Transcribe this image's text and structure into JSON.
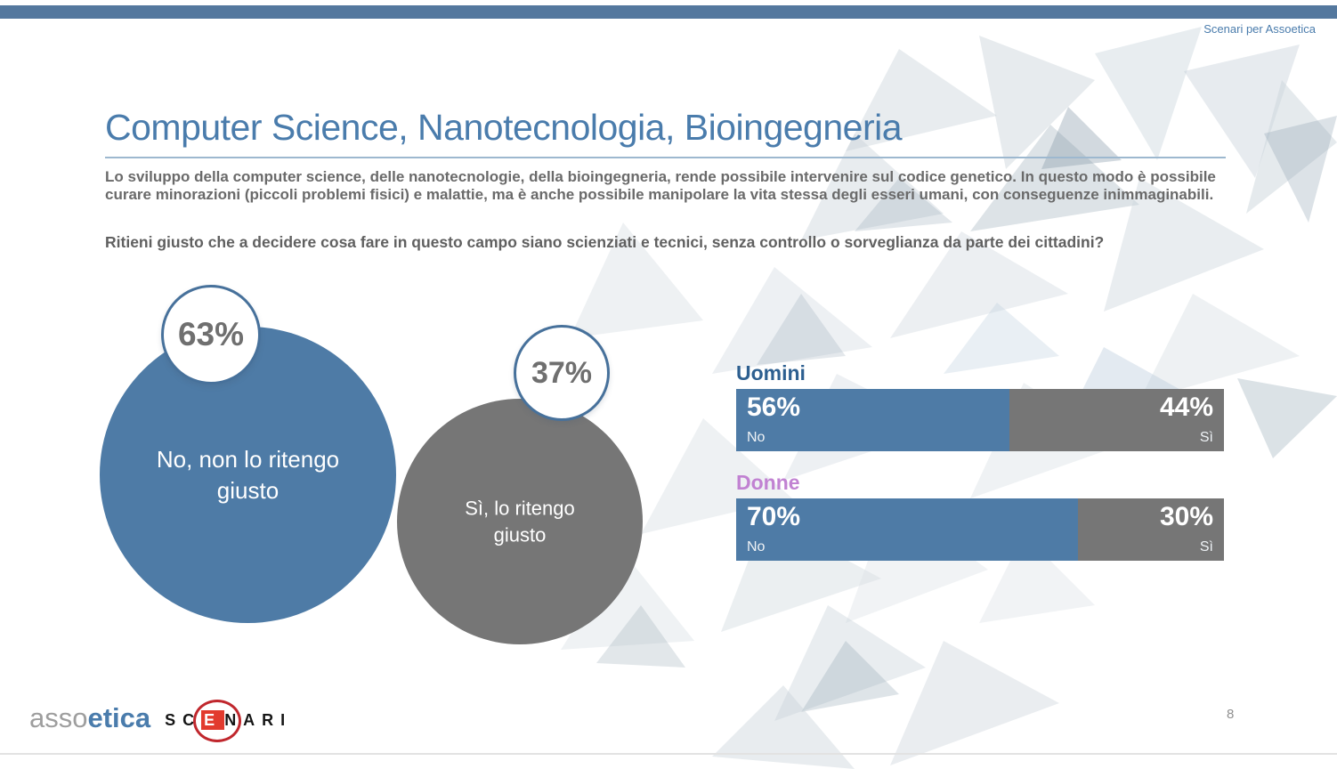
{
  "page": {
    "top_note": "Scenari per Assoetica",
    "page_number": "8"
  },
  "slide": {
    "title": "Computer Science, Nanotecnologia, Bioingegneria",
    "intro": "Lo sviluppo della computer science, delle nanotecnologie, della bioingegneria, rende possibile intervenire sul codice genetico. In questo modo è possibile curare minorazioni (piccoli problemi fisici) e malattie, ma è anche possibile manipolare la vita stessa degli esseri umani, con conseguenze inimmaginabili.",
    "question": "Ritieni giusto che a decidere cosa fare in questo campo siano scienziati e tecnici, senza controllo o sorveglianza da parte dei cittadini?"
  },
  "bubbles": [
    {
      "percent": "63%",
      "label": "No, non lo ritengo giusto"
    },
    {
      "percent": "37%",
      "label": "Sì, lo ritengo giusto"
    }
  ],
  "bars": [
    {
      "group": "Uomini",
      "segments": [
        {
          "percent": "56%",
          "answer": "No",
          "value": 56
        },
        {
          "percent": "44%",
          "answer": "Sì",
          "value": 44
        }
      ]
    },
    {
      "group": "Donne",
      "segments": [
        {
          "percent": "70%",
          "answer": "No",
          "value": 70
        },
        {
          "percent": "30%",
          "answer": "Sì",
          "value": 30
        }
      ]
    }
  ],
  "logo": {
    "asso": "asso",
    "etica": "etica",
    "scenari_pre": "SC",
    "scenari_e": "E",
    "scenari_post": "NARI"
  },
  "colors": {
    "accent_blue": "#4e7ba6",
    "neutral_gray": "#767676",
    "title_blue": "#4a7cac",
    "uomini_label_blue": "#2d5f90",
    "donne_label_pink": "#c182d2",
    "top_bar": "#54789e",
    "logo_red": "#e23b2e"
  },
  "chart_data": [
    {
      "type": "pie",
      "render_style": "proportional-bubbles",
      "title": "Ritieni giusto che a decidere cosa fare in questo campo siano scienziati e tecnici, senza controllo o sorveglianza da parte dei cittadini?",
      "categories": [
        "No, non lo ritengo giusto",
        "Sì, lo ritengo giusto"
      ],
      "values": [
        63,
        37
      ],
      "value_suffix": "%",
      "colors": [
        "#4e7ba6",
        "#767676"
      ],
      "legend_position": "inside"
    },
    {
      "type": "bar",
      "orientation": "horizontal",
      "stacked": true,
      "categories": [
        "Uomini",
        "Donne"
      ],
      "series": [
        {
          "name": "No",
          "values": [
            56,
            70
          ],
          "color": "#4e7ba6"
        },
        {
          "name": "Sì",
          "values": [
            44,
            30
          ],
          "color": "#767676"
        }
      ],
      "xlim": [
        0,
        100
      ],
      "value_suffix": "%",
      "grid": false,
      "legend_position": "inside-bars"
    }
  ]
}
